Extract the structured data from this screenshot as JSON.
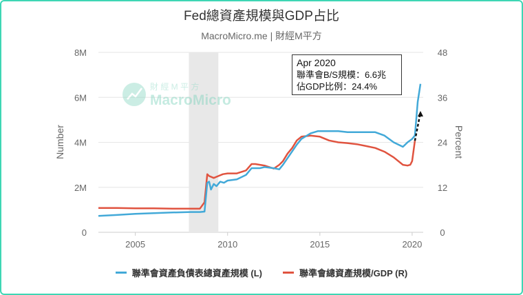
{
  "title": "Fed總資產規模與GDP占比",
  "subtitle": "MacroMicro.me | 財經M平方",
  "watermark": {
    "line1": "財 經 M 平 方",
    "line2": "MacroMicro"
  },
  "tooltip": {
    "date": "Apr 2020",
    "line1": "聯準會B/S規模：6.6兆",
    "line2": "佔GDP比例：24.4%"
  },
  "colors": {
    "blue": "#42a9d8",
    "red": "#e0533f",
    "accent": "#3ed6b4"
  },
  "chart_data": {
    "type": "line",
    "xlabel": "",
    "ylabel_left": "Number",
    "ylabel_right": "Percent",
    "x_ticks": [
      "2005",
      "2010",
      "2015",
      "2020"
    ],
    "y_left_ticks": [
      "0",
      "2M",
      "4M",
      "6M",
      "8M"
    ],
    "y_right_ticks": [
      "0",
      "12",
      "24",
      "36",
      "48"
    ],
    "y_left_range": [
      0,
      8000000
    ],
    "y_right_range": [
      0,
      48
    ],
    "x_range": [
      2003,
      2020.6
    ],
    "recession_band": [
      2007.9,
      2009.5
    ],
    "series": [
      {
        "name": "聯準會資產負債表總資產規模 (L)",
        "axis": "left",
        "x": [
          2003,
          2004,
          2005,
          2006,
          2007,
          2008,
          2008.5,
          2008.75,
          2008.9,
          2009.0,
          2009.1,
          2009.25,
          2009.4,
          2009.6,
          2009.8,
          2010,
          2010.5,
          2011,
          2011.3,
          2011.5,
          2011.75,
          2012,
          2012.5,
          2012.8,
          2013,
          2013.25,
          2013.5,
          2013.75,
          2014,
          2014.5,
          2014.9,
          2015,
          2015.5,
          2016,
          2016.5,
          2017,
          2017.5,
          2018,
          2018.5,
          2019,
          2019.5,
          2019.75,
          2020,
          2020.15,
          2020.3,
          2020.45
        ],
        "values": [
          730000,
          770000,
          820000,
          850000,
          880000,
          900000,
          900000,
          920000,
          2200000,
          2250000,
          1900000,
          2150000,
          2050000,
          2250000,
          2200000,
          2300000,
          2350000,
          2550000,
          2850000,
          2850000,
          2850000,
          2900000,
          2850000,
          2800000,
          3000000,
          3300000,
          3600000,
          3900000,
          4150000,
          4400000,
          4500000,
          4500000,
          4500000,
          4500000,
          4450000,
          4450000,
          4450000,
          4450000,
          4300000,
          4000000,
          3800000,
          4000000,
          4150000,
          4300000,
          5800000,
          6600000
        ]
      },
      {
        "name": "聯準會總資產規模/GDP (R)",
        "axis": "right",
        "x": [
          2003,
          2004,
          2005,
          2006,
          2007,
          2008,
          2008.5,
          2008.75,
          2008.9,
          2009.0,
          2009.25,
          2009.5,
          2009.75,
          2010,
          2010.5,
          2011,
          2011.3,
          2011.5,
          2011.75,
          2012,
          2012.5,
          2012.8,
          2013,
          2013.25,
          2013.5,
          2013.75,
          2014,
          2014.5,
          2015,
          2015.5,
          2016,
          2016.5,
          2017,
          2017.5,
          2018,
          2018.5,
          2019,
          2019.5,
          2019.75,
          2019.9,
          2020,
          2020.15
        ],
        "values": [
          6.5,
          6.5,
          6.4,
          6.4,
          6.3,
          6.3,
          6.3,
          8.0,
          15.5,
          15.0,
          14.5,
          15.0,
          15.5,
          15.7,
          15.7,
          16.5,
          18.2,
          18.2,
          18.0,
          17.8,
          17.0,
          18.0,
          19.0,
          21.0,
          22.5,
          24.5,
          25.5,
          25.8,
          25.5,
          24.5,
          24.0,
          23.8,
          23.5,
          23.0,
          22.5,
          21.5,
          20.0,
          18.0,
          17.8,
          18.0,
          19.0,
          24.4
        ]
      }
    ],
    "dashed_segment": {
      "x": [
        2020.15,
        2020.45
      ],
      "values": [
        24.4,
        32
      ]
    }
  }
}
